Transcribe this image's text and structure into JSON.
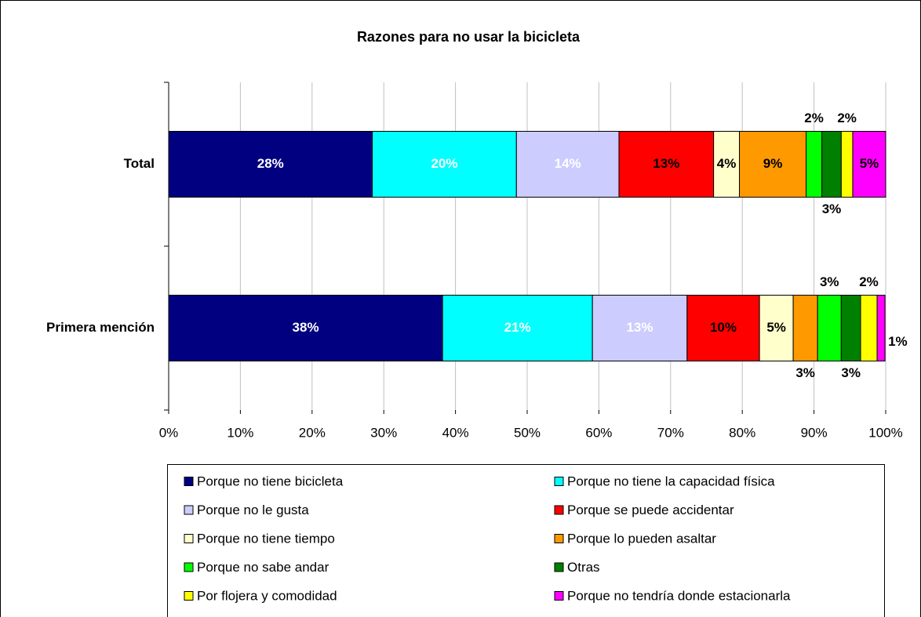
{
  "chart_data": {
    "type": "stacked-barh",
    "title": "Razones para no usar la bicicleta",
    "categories": [
      "Total",
      "Primera mención"
    ],
    "series": [
      {
        "name": "Porque no tiene bicicleta",
        "color": "#000080",
        "values": [
          28.4,
          38.2
        ],
        "value_labels": [
          "28%",
          "38%"
        ]
      },
      {
        "name": "Porque no tiene la capacidad física",
        "color": "#00ffff",
        "values": [
          20.1,
          20.9
        ],
        "value_labels": [
          "20%",
          "21%"
        ]
      },
      {
        "name": "Porque no le gusta",
        "color": "#ccccff",
        "values": [
          14.3,
          13.2
        ],
        "value_labels": [
          "14%",
          "13%"
        ]
      },
      {
        "name": "Porque se puede accidentar",
        "color": "#ff0000",
        "values": [
          13.2,
          10.1
        ],
        "value_labels": [
          "13%",
          "10%"
        ]
      },
      {
        "name": "Porque no tiene tiempo",
        "color": "#ffffcc",
        "values": [
          3.6,
          4.7
        ],
        "value_labels": [
          "4%",
          "5%"
        ]
      },
      {
        "name": "Porque lo pueden asaltar",
        "color": "#ff9900",
        "values": [
          9.3,
          3.4
        ],
        "value_labels": [
          "9%",
          "3%"
        ]
      },
      {
        "name": "Porque no sabe andar",
        "color": "#00ff00",
        "values": [
          2.2,
          3.3
        ],
        "value_labels": [
          "2%",
          "3%"
        ]
      },
      {
        "name": "Otras",
        "color": "#008000",
        "values": [
          2.7,
          2.7
        ],
        "value_labels": [
          "3%",
          "3%"
        ]
      },
      {
        "name": "Por flojera y comodidad",
        "color": "#ffff00",
        "values": [
          1.6,
          2.3
        ],
        "value_labels": [
          "2%",
          "2%"
        ]
      },
      {
        "name": "Porque no tendría donde estacionarla",
        "color": "#ff00ff",
        "values": [
          4.6,
          1.1
        ],
        "value_labels": [
          "5%",
          "1%"
        ]
      }
    ],
    "xlim": [
      0,
      100
    ],
    "xticks": [
      {
        "value": 0,
        "label": "0%"
      },
      {
        "value": 10,
        "label": "10%"
      },
      {
        "value": 20,
        "label": "20%"
      },
      {
        "value": 30,
        "label": "30%"
      },
      {
        "value": 40,
        "label": "40%"
      },
      {
        "value": 50,
        "label": "50%"
      },
      {
        "value": 60,
        "label": "60%"
      },
      {
        "value": 70,
        "label": "70%"
      },
      {
        "value": 80,
        "label": "80%"
      },
      {
        "value": 90,
        "label": "90%"
      },
      {
        "value": 100,
        "label": "100%"
      }
    ],
    "grid": true,
    "legend": "bottom"
  }
}
